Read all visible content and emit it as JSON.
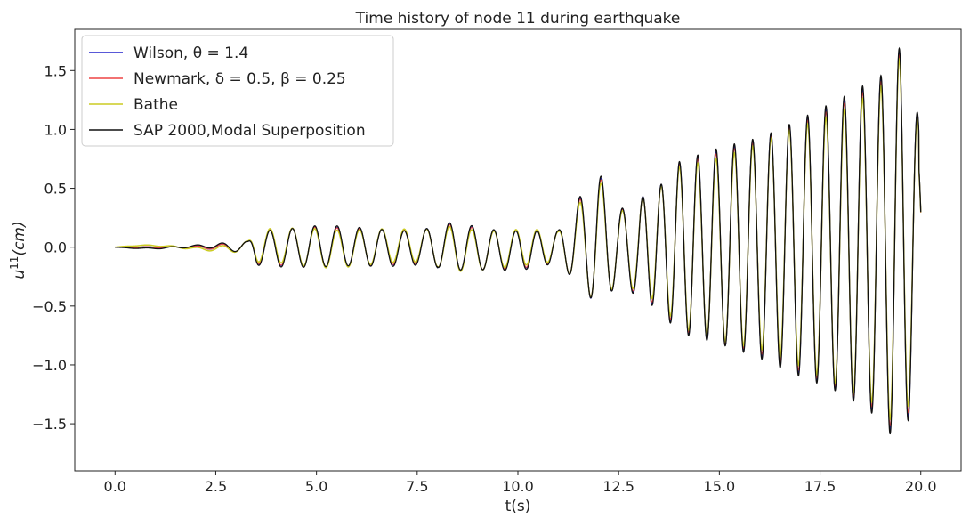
{
  "chart_data": {
    "type": "line",
    "title": "Time history of node 11 during earthquake",
    "xlabel": "t(s)",
    "ylabel_base": "u",
    "ylabel_sup": "11",
    "ylabel_suffix": "(cm)",
    "xlim": [
      -1.0,
      21.0
    ],
    "ylim": [
      -1.9,
      1.85
    ],
    "xticks": [
      0.0,
      2.5,
      5.0,
      7.5,
      10.0,
      12.5,
      15.0,
      17.5,
      20.0
    ],
    "xtick_labels": [
      "0.0",
      "2.5",
      "5.0",
      "7.5",
      "10.0",
      "12.5",
      "15.0",
      "17.5",
      "20.0"
    ],
    "yticks": [
      -1.5,
      -1.0,
      -0.5,
      0.0,
      0.5,
      1.0,
      1.5
    ],
    "ytick_labels": [
      "−1.5",
      "−1.0",
      "−0.5",
      "0.0",
      "0.5",
      "1.0",
      "1.5"
    ],
    "grid": false,
    "legend_position": "top-left",
    "series": [
      {
        "name": "Wilson, θ = 1.4",
        "color": "#2222cc"
      },
      {
        "name": "Newmark, δ = 0.5, β = 0.25",
        "color": "#ee4444"
      },
      {
        "name": "Bathe",
        "color": "#cccc22"
      },
      {
        "name": "SAP 2000,Modal Superposition",
        "color": "#111111"
      }
    ],
    "envelope": {
      "t": [
        0,
        2.0,
        2.5,
        3.0,
        3.3,
        3.5,
        5.0,
        7.5,
        8.5,
        10.0,
        11.0,
        12.0,
        12.5,
        13.5,
        14.0,
        15.0,
        16.0,
        17.0,
        18.0,
        19.0,
        19.5,
        20.0
      ],
      "amplitude": [
        0.0,
        0.01,
        0.02,
        0.04,
        0.05,
        0.14,
        0.17,
        0.14,
        0.2,
        0.18,
        0.12,
        0.5,
        0.3,
        0.5,
        0.7,
        0.8,
        0.9,
        1.05,
        1.2,
        1.4,
        1.65,
        1.0
      ]
    }
  }
}
